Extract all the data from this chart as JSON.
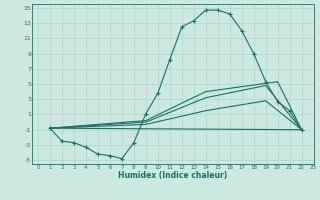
{
  "background_color": "#cce8e0",
  "grid_color": "#b8d8d0",
  "line_color": "#1a7068",
  "xlabel": "Humidex (Indice chaleur)",
  "xlim": [
    -0.5,
    23
  ],
  "ylim": [
    -5.5,
    15.5
  ],
  "xticks": [
    0,
    1,
    2,
    3,
    4,
    5,
    6,
    7,
    8,
    9,
    10,
    11,
    12,
    13,
    14,
    15,
    16,
    17,
    18,
    19,
    20,
    21,
    22,
    23
  ],
  "yticks": [
    -5,
    -3,
    -1,
    1,
    3,
    5,
    7,
    9,
    11,
    13,
    15
  ],
  "line1_x": [
    1,
    2,
    3,
    4,
    5,
    6,
    7,
    8,
    9,
    10,
    11,
    12,
    13,
    14,
    15,
    16,
    17,
    18,
    19,
    20,
    21,
    22
  ],
  "line1_y": [
    -0.8,
    -2.5,
    -2.7,
    -3.3,
    -4.2,
    -4.4,
    -4.8,
    -2.7,
    1.1,
    3.8,
    8.2,
    12.5,
    13.3,
    14.7,
    14.7,
    14.2,
    12.0,
    9.0,
    5.3,
    2.7,
    1.5,
    -1.0
  ],
  "line2_x": [
    1,
    22
  ],
  "line2_y": [
    -0.8,
    -1.0
  ],
  "line3_x": [
    1,
    9,
    14,
    19,
    22
  ],
  "line3_y": [
    -0.8,
    -0.3,
    1.5,
    2.8,
    -1.0
  ],
  "line4_x": [
    1,
    9,
    14,
    19,
    22
  ],
  "line4_y": [
    -0.8,
    0.0,
    3.2,
    4.8,
    -1.0
  ],
  "line5_x": [
    1,
    9,
    14,
    20,
    22
  ],
  "line5_y": [
    -0.8,
    0.2,
    4.0,
    5.3,
    -1.0
  ]
}
